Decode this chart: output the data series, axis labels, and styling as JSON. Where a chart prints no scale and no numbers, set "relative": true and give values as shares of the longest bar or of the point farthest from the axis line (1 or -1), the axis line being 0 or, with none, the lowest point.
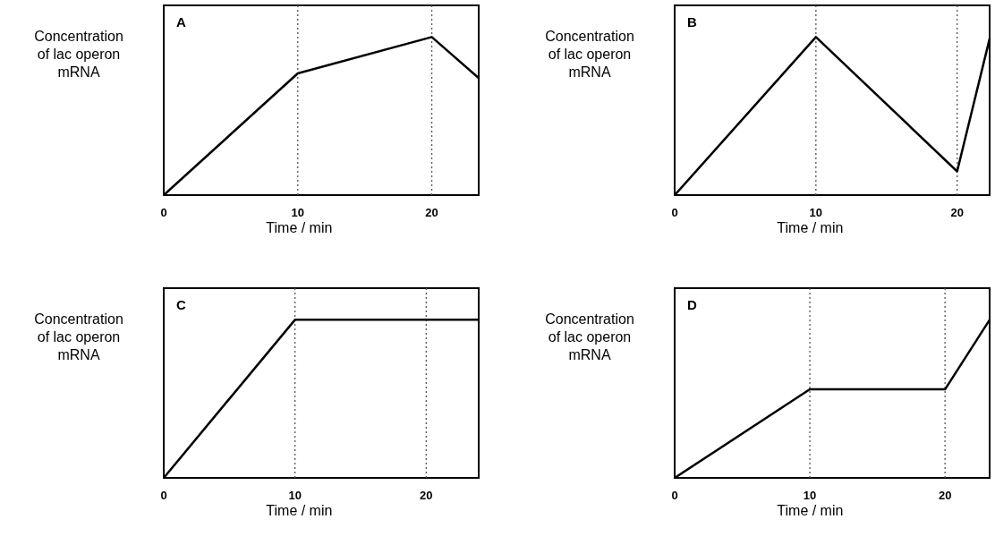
{
  "chart_data": [
    {
      "type": "line",
      "title": "A",
      "xlabel": "Time / min",
      "ylabel": "Concentration of lac operon mRNA",
      "relative": true,
      "xlim": [
        0,
        23.5
      ],
      "xticks": [
        0,
        10,
        20
      ],
      "series": [
        {
          "color": "#000000",
          "x": [
            0,
            10,
            20,
            23.5
          ],
          "values": [
            0,
            0.77,
            1,
            0.74
          ]
        }
      ],
      "ref_lines": [
        {
          "axis": "x",
          "value": 10,
          "color": "#555555",
          "line_style": "dotted"
        },
        {
          "axis": "x",
          "value": 20,
          "color": "#555555",
          "line_style": "dotted"
        }
      ]
    },
    {
      "type": "line",
      "title": "B",
      "xlabel": "Time / min",
      "ylabel": "Concentration of lac operon mRNA",
      "relative": true,
      "xlim": [
        0,
        22.3
      ],
      "xticks": [
        0,
        10,
        20
      ],
      "series": [
        {
          "color": "#000000",
          "x": [
            0,
            10,
            20,
            22.3
          ],
          "values": [
            0,
            1,
            0.15,
            0.99
          ]
        }
      ],
      "ref_lines": [
        {
          "axis": "x",
          "value": 10,
          "color": "#555555",
          "line_style": "dotted"
        },
        {
          "axis": "x",
          "value": 20,
          "color": "#555555",
          "line_style": "dotted"
        }
      ]
    },
    {
      "type": "line",
      "title": "C",
      "xlabel": "Time / min",
      "ylabel": "Concentration of lac operon mRNA",
      "relative": true,
      "xlim": [
        0,
        24
      ],
      "xticks": [
        0,
        10,
        20
      ],
      "series": [
        {
          "color": "#000000",
          "x": [
            0,
            10,
            20,
            24
          ],
          "values": [
            0,
            1,
            1,
            1
          ]
        }
      ],
      "ref_lines": [
        {
          "axis": "x",
          "value": 10,
          "color": "#555555",
          "line_style": "dotted"
        },
        {
          "axis": "x",
          "value": 20,
          "color": "#555555",
          "line_style": "dotted"
        }
      ]
    },
    {
      "type": "line",
      "title": "D",
      "xlabel": "Time / min",
      "ylabel": "Concentration of lac operon mRNA",
      "relative": true,
      "xlim": [
        0,
        23.3
      ],
      "xticks": [
        0,
        10,
        20
      ],
      "series": [
        {
          "color": "#000000",
          "x": [
            0,
            10,
            20,
            23.3
          ],
          "values": [
            0,
            0.56,
            0.56,
            1
          ]
        }
      ],
      "ref_lines": [
        {
          "axis": "x",
          "value": 10,
          "color": "#555555",
          "line_style": "dotted"
        },
        {
          "axis": "x",
          "value": 20,
          "color": "#555555",
          "line_style": "dotted"
        }
      ]
    }
  ]
}
